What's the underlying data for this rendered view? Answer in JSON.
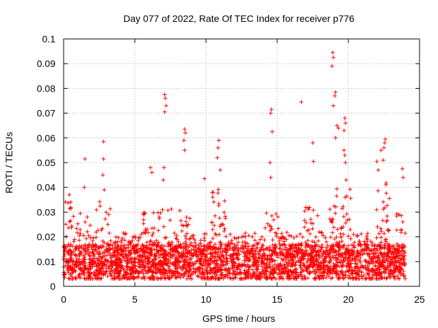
{
  "chart_data": {
    "type": "scatter",
    "title": "Day 077 of 2022, Rate Of TEC Index for receiver p776",
    "xlabel": "GPS time / hours",
    "ylabel": "ROTI / TECUs",
    "xlim": [
      0,
      25
    ],
    "ylim": [
      0,
      0.1
    ],
    "x_ticks": [
      0,
      5,
      10,
      15,
      20,
      25
    ],
    "x_tick_labels": [
      "0",
      "5",
      "10",
      "15",
      "20",
      "25"
    ],
    "y_ticks": [
      0,
      0.01,
      0.02,
      0.03,
      0.04,
      0.05,
      0.06,
      0.07,
      0.08,
      0.09,
      0.1
    ],
    "y_tick_labels": [
      "0",
      "0.01",
      "0.02",
      "0.03",
      "0.04",
      "0.05",
      "0.06",
      "0.07",
      "0.08",
      "0.09",
      "0.1"
    ],
    "grid": true,
    "marker": "+",
    "marker_color": "#ff0000",
    "bulk_band": {
      "x_range": [
        0,
        24
      ],
      "typical_range": [
        0.003,
        0.03
      ],
      "dense_center": 0.011
    },
    "series": [
      {
        "name": "ROTI",
        "notable_points": [
          {
            "x": 0.4,
            "y": 0.037
          },
          {
            "x": 0.5,
            "y": 0.034
          },
          {
            "x": 1.5,
            "y": 0.0515
          },
          {
            "x": 1.45,
            "y": 0.04
          },
          {
            "x": 2.8,
            "y": 0.0585
          },
          {
            "x": 2.8,
            "y": 0.0515
          },
          {
            "x": 2.75,
            "y": 0.045
          },
          {
            "x": 2.85,
            "y": 0.039
          },
          {
            "x": 6.1,
            "y": 0.048
          },
          {
            "x": 6.2,
            "y": 0.046
          },
          {
            "x": 7.1,
            "y": 0.0775
          },
          {
            "x": 7.15,
            "y": 0.076
          },
          {
            "x": 7.2,
            "y": 0.073
          },
          {
            "x": 7.1,
            "y": 0.0705
          },
          {
            "x": 7.05,
            "y": 0.048
          },
          {
            "x": 7.0,
            "y": 0.043
          },
          {
            "x": 8.5,
            "y": 0.0635
          },
          {
            "x": 8.55,
            "y": 0.062
          },
          {
            "x": 8.45,
            "y": 0.059
          },
          {
            "x": 8.5,
            "y": 0.055
          },
          {
            "x": 9.9,
            "y": 0.0435
          },
          {
            "x": 10.9,
            "y": 0.059
          },
          {
            "x": 10.85,
            "y": 0.056
          },
          {
            "x": 10.8,
            "y": 0.052
          },
          {
            "x": 11.0,
            "y": 0.047
          },
          {
            "x": 14.6,
            "y": 0.0715
          },
          {
            "x": 14.55,
            "y": 0.07
          },
          {
            "x": 14.65,
            "y": 0.0625
          },
          {
            "x": 14.5,
            "y": 0.05
          },
          {
            "x": 14.55,
            "y": 0.044
          },
          {
            "x": 16.7,
            "y": 0.0745
          },
          {
            "x": 17.5,
            "y": 0.058
          },
          {
            "x": 17.55,
            "y": 0.0505
          },
          {
            "x": 18.9,
            "y": 0.0945
          },
          {
            "x": 18.95,
            "y": 0.0925
          },
          {
            "x": 18.85,
            "y": 0.089
          },
          {
            "x": 19.1,
            "y": 0.0785
          },
          {
            "x": 19.05,
            "y": 0.077
          },
          {
            "x": 18.95,
            "y": 0.073
          },
          {
            "x": 19.2,
            "y": 0.065
          },
          {
            "x": 19.3,
            "y": 0.064
          },
          {
            "x": 19.1,
            "y": 0.06
          },
          {
            "x": 19.75,
            "y": 0.068
          },
          {
            "x": 19.8,
            "y": 0.066
          },
          {
            "x": 19.7,
            "y": 0.063
          },
          {
            "x": 19.7,
            "y": 0.055
          },
          {
            "x": 19.75,
            "y": 0.053
          },
          {
            "x": 19.8,
            "y": 0.05
          },
          {
            "x": 19.85,
            "y": 0.043
          },
          {
            "x": 22.6,
            "y": 0.0595
          },
          {
            "x": 22.55,
            "y": 0.058
          },
          {
            "x": 22.5,
            "y": 0.056
          },
          {
            "x": 22.3,
            "y": 0.055
          },
          {
            "x": 22.45,
            "y": 0.051
          },
          {
            "x": 22.0,
            "y": 0.0505
          },
          {
            "x": 22.1,
            "y": 0.047
          },
          {
            "x": 23.8,
            "y": 0.0475
          },
          {
            "x": 23.85,
            "y": 0.044
          }
        ]
      }
    ]
  }
}
